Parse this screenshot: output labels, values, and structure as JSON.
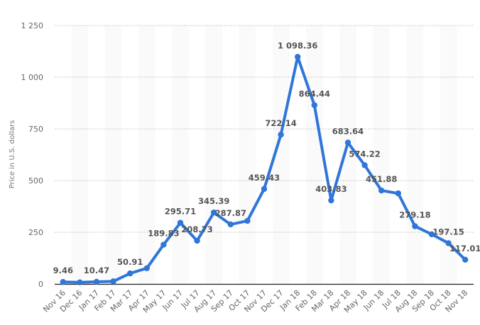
{
  "chart_data": {
    "type": "line",
    "title": "",
    "xlabel": "",
    "ylabel": "Price in U.S. dollars",
    "ylim": [
      0,
      1250
    ],
    "yticks": [
      0,
      250,
      500,
      750,
      1000,
      1250
    ],
    "ytick_labels": [
      "0",
      "250",
      "500",
      "750",
      "1 000",
      "1 250"
    ],
    "grid": true,
    "legend": null,
    "series_color": "#2f76d8",
    "categories": [
      "Nov 16",
      "Dec 16",
      "Jan 17",
      "Feb 17",
      "Mar 17",
      "Apr 17",
      "May 17",
      "Jun 17",
      "Jul 17",
      "Aug 17",
      "Sep 17",
      "Oct 17",
      "Nov 17",
      "Dec 17",
      "Jan 18",
      "Feb 18",
      "Mar 18",
      "Apr 18",
      "May 18",
      "Jun 18",
      "Jul 18",
      "Aug 18",
      "Sep 18",
      "Oct 18",
      "Nov 18"
    ],
    "series": [
      {
        "name": "Price",
        "values": [
          9.46,
          7.5,
          10.47,
          12.5,
          50.91,
          76,
          189.83,
          295.71,
          208.73,
          345.39,
          287.87,
          305,
          459.43,
          722.14,
          1098.36,
          864.44,
          403.83,
          683.64,
          574.22,
          451.88,
          438,
          279.18,
          240,
          197.15,
          117.01
        ],
        "labels": [
          "9.46",
          "",
          "10.47",
          "",
          "50.91",
          "",
          "189.83",
          "295.71",
          "208.73",
          "345.39",
          "287.87",
          "",
          "459.43",
          "722.14",
          "1 098.36",
          "864.44",
          "403.83",
          "683.64",
          "574.22",
          "451.88",
          "",
          "279.18",
          "",
          "197.15",
          "117.01"
        ]
      }
    ]
  }
}
